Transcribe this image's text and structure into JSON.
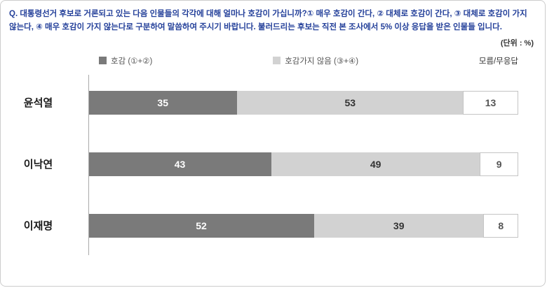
{
  "question": "Q. 대통령선거 후보로 거론되고 있는 다음 인물들의 각각에 대해 얼마나 호감이 가십니까?① 매우 호감이 간다, ② 대체로 호감이 간다, ③ 대체로 호감이 가지 않는다, ④ 매우 호감이 가지 않는다로 구분하여 말씀하여 주시기 바랍니다. 불러드리는 후보는 직전 본 조사에서 5% 이상 응답을 받은 인물들 입니다.",
  "unit_label": "(단위 : %)",
  "legend": {
    "favorable": "호감 (①+②)",
    "unfavorable": "호감가지 않음 (③+④)",
    "dont_know": "모름/무응답"
  },
  "colors": {
    "question_text": "#24409a",
    "favorable_bar": "#7a7a7a",
    "unfavorable_bar": "#d2d2d2",
    "dont_know_box_bg": "#ffffff",
    "dont_know_box_border": "#c4c4c4",
    "outer_border": "#cccccc"
  },
  "chart_data": {
    "type": "bar",
    "orientation": "horizontal",
    "stacked": true,
    "unit": "%",
    "xlim": [
      0,
      100
    ],
    "categories": [
      "윤석열",
      "이낙연",
      "이재명"
    ],
    "series": [
      {
        "name": "호감 (①+②)",
        "values": [
          35,
          43,
          52
        ]
      },
      {
        "name": "호감가지 않음 (③+④)",
        "values": [
          53,
          49,
          39
        ]
      },
      {
        "name": "모름/무응답",
        "values": [
          13,
          9,
          8
        ]
      }
    ]
  }
}
